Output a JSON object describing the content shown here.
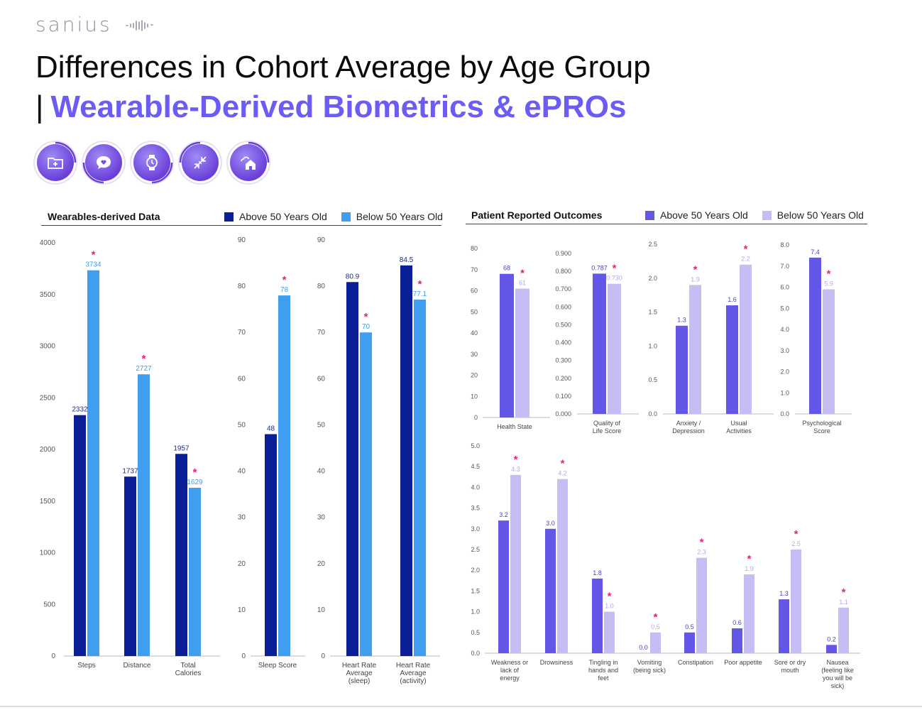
{
  "brand": {
    "name": "sanius"
  },
  "header": {
    "title_line1": "Differences in Cohort Average by Age Group",
    "title_bar": "|",
    "title_line2": "Wearable-Derived Biometrics & ePROs"
  },
  "icons": [
    "folder-plus-icon",
    "speech-heart-icon",
    "watch-icon",
    "dna-icon",
    "cloud-house-icon"
  ],
  "colors": {
    "brand_purple": "#6b5cf5",
    "wear_above": "#0a1f96",
    "wear_below": "#3f9ef0",
    "pro_above": "#6357e8",
    "pro_below": "#c5bdf3",
    "star": "#e6207f"
  },
  "wearables": {
    "heading": "Wearables-derived Data",
    "legend": [
      "Above 50 Years Old",
      "Below 50 Years Old"
    ]
  },
  "pro": {
    "heading": "Patient Reported Outcomes",
    "legend": [
      "Above 50 Years Old",
      "Below 50 Years Old"
    ]
  },
  "chart_data": [
    {
      "type": "bar",
      "id": "steps-distance-calories",
      "categories": [
        "Steps",
        "Distance",
        "Total Calories"
      ],
      "series": [
        {
          "name": "Above 50 Years Old",
          "values": [
            2332,
            1737,
            1957
          ],
          "labels": [
            "2332",
            "1737",
            "1957"
          ]
        },
        {
          "name": "Below 50 Years Old",
          "values": [
            3734,
            2727,
            1629
          ],
          "labels": [
            "3734",
            "2727",
            "1629"
          ]
        }
      ],
      "significant": [
        true,
        true,
        true
      ],
      "ylim": [
        0,
        4000
      ],
      "ticks": [
        "0",
        "500",
        "1000",
        "1500",
        "2000",
        "2500",
        "3000",
        "3500",
        "4000"
      ]
    },
    {
      "type": "bar",
      "id": "sleep-score",
      "categories": [
        "Sleep Score"
      ],
      "series": [
        {
          "name": "Above 50 Years Old",
          "values": [
            48
          ],
          "labels": [
            "48"
          ]
        },
        {
          "name": "Below 50 Years Old",
          "values": [
            78
          ],
          "labels": [
            "78"
          ]
        }
      ],
      "significant": [
        true
      ],
      "ylim": [
        0,
        90
      ],
      "ticks": [
        "0",
        "10",
        "20",
        "30",
        "40",
        "50",
        "60",
        "70",
        "80",
        "90"
      ]
    },
    {
      "type": "bar",
      "id": "heart-rate",
      "categories": [
        "Heart Rate Average (sleep)",
        "Heart Rate Average (activity)"
      ],
      "series": [
        {
          "name": "Above 50 Years Old",
          "values": [
            80.9,
            84.5
          ],
          "labels": [
            "80.9",
            "84.5"
          ]
        },
        {
          "name": "Below 50 Years Old",
          "values": [
            70,
            77.1
          ],
          "labels": [
            "70",
            "77.1"
          ]
        }
      ],
      "significant": [
        true,
        true
      ],
      "ylim": [
        0,
        90
      ],
      "ticks": [
        "0",
        "10",
        "20",
        "30",
        "40",
        "50",
        "60",
        "70",
        "80",
        "90"
      ]
    },
    {
      "type": "bar",
      "id": "health-state",
      "categories": [
        "Health State"
      ],
      "series": [
        {
          "name": "Above 50 Years Old",
          "values": [
            68
          ],
          "labels": [
            "68"
          ]
        },
        {
          "name": "Below 50 Years Old",
          "values": [
            61
          ],
          "labels": [
            "61"
          ]
        }
      ],
      "significant": [
        true
      ],
      "ylim": [
        0,
        80
      ],
      "ticks": [
        "0",
        "10",
        "20",
        "30",
        "40",
        "50",
        "60",
        "70",
        "80"
      ]
    },
    {
      "type": "bar",
      "id": "quality-of-life",
      "categories": [
        "Quality of Life Score"
      ],
      "series": [
        {
          "name": "Above 50 Years Old",
          "values": [
            0.787
          ],
          "labels": [
            "0.787"
          ]
        },
        {
          "name": "Below 50 Years Old",
          "values": [
            0.73
          ],
          "labels": [
            "0.730"
          ]
        }
      ],
      "significant": [
        true
      ],
      "ylim": [
        0,
        0.9
      ],
      "ticks": [
        "0.000",
        "0.100",
        "0.200",
        "0.300",
        "0.400",
        "0.500",
        "0.600",
        "0.700",
        "0.800",
        "0.900"
      ]
    },
    {
      "type": "bar",
      "id": "anxiety-usual",
      "categories": [
        "Anxiety / Depression",
        "Usual Activities"
      ],
      "series": [
        {
          "name": "Above 50 Years Old",
          "values": [
            1.3,
            1.6
          ],
          "labels": [
            "1.3",
            "1.6"
          ]
        },
        {
          "name": "Below 50 Years Old",
          "values": [
            1.9,
            2.2
          ],
          "labels": [
            "1.9",
            "2.2"
          ]
        }
      ],
      "significant": [
        true,
        true
      ],
      "ylim": [
        0,
        2.5
      ],
      "ticks": [
        "0.0",
        "0.5",
        "1.0",
        "1.5",
        "2.0",
        "2.5"
      ]
    },
    {
      "type": "bar",
      "id": "psychological",
      "categories": [
        "Psychological Score"
      ],
      "series": [
        {
          "name": "Above 50 Years Old",
          "values": [
            7.4
          ],
          "labels": [
            "7.4"
          ]
        },
        {
          "name": "Below 50 Years Old",
          "values": [
            5.9
          ],
          "labels": [
            "5.9"
          ]
        }
      ],
      "significant": [
        true
      ],
      "ylim": [
        0,
        8
      ],
      "ticks": [
        "0.0",
        "1.0",
        "2.0",
        "3.0",
        "4.0",
        "5.0",
        "6.0",
        "7.0",
        "8.0"
      ]
    },
    {
      "type": "bar",
      "id": "symptoms",
      "categories": [
        "Weakness or lack of energy",
        "Drowsiness",
        "Tingling in hands and feet",
        "Vomiting (being sick)",
        "Constipation",
        "Poor appetite",
        "Sore or dry mouth",
        "Nausea (feeling like you will be sick)"
      ],
      "series": [
        {
          "name": "Above 50 Years Old",
          "values": [
            3.2,
            3.0,
            1.8,
            0.0,
            0.5,
            0.6,
            1.3,
            0.2
          ],
          "labels": [
            "3.2",
            "3.0",
            "1.8",
            "0.0",
            "0.5",
            "0.6",
            "1.3",
            "0.2"
          ]
        },
        {
          "name": "Below 50 Years Old",
          "values": [
            4.3,
            4.2,
            1.0,
            0.5,
            2.3,
            1.9,
            2.5,
            1.1
          ],
          "labels": [
            "4.3",
            "4.2",
            "1.0",
            "0.5",
            "2.3",
            "1.9",
            "2.5",
            "1.1"
          ]
        }
      ],
      "significant": [
        true,
        true,
        true,
        true,
        true,
        true,
        true,
        true
      ],
      "ylim": [
        0,
        5
      ],
      "ticks": [
        "0.0",
        "0.5",
        "1.0",
        "1.5",
        "2.0",
        "2.5",
        "3.0",
        "3.5",
        "4.0",
        "4.5",
        "5.0"
      ]
    }
  ]
}
